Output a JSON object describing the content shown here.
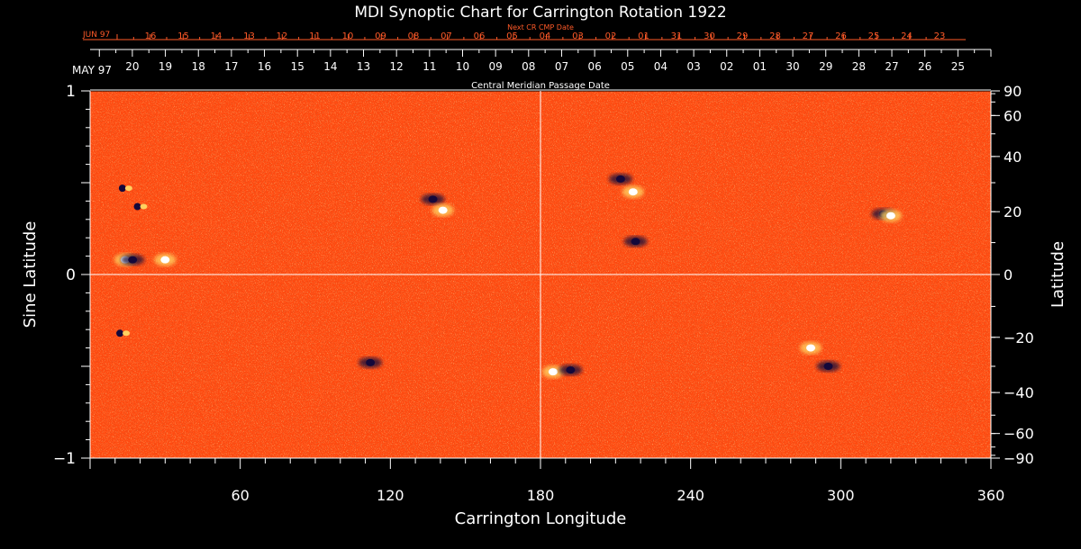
{
  "chart_data": {
    "type": "heatmap",
    "title": "MDI Synoptic Chart for Carrington Rotation 1922",
    "xlabel": "Carrington Longitude",
    "ylabel_left": "Sine Latitude",
    "ylabel_right": "Latitude",
    "xlim": [
      0,
      360
    ],
    "ylim": [
      -1,
      1
    ],
    "x_ticks": [
      60,
      120,
      180,
      240,
      300,
      360
    ],
    "y_left_ticks": [
      {
        "v": 1,
        "label": "1"
      },
      {
        "v": 0,
        "label": "0"
      },
      {
        "v": -1,
        "label": "−1"
      }
    ],
    "y_right_ticks": [
      90,
      60,
      40,
      20,
      0,
      -20,
      -40,
      -60,
      -90
    ],
    "y_right_tick_labels": [
      "90",
      "60",
      "40",
      "20",
      "0",
      "−20",
      "−40",
      "−60",
      "−90"
    ],
    "center_lines": {
      "longitude": 180,
      "sine_latitude": 0
    },
    "top_axis": {
      "label": "Central Meridian Passage Date",
      "month_label": "MAY 97",
      "dates": [
        "20",
        "19",
        "18",
        "17",
        "16",
        "15",
        "14",
        "13",
        "12",
        "11",
        "10",
        "09",
        "08",
        "07",
        "06",
        "05",
        "04",
        "03",
        "02",
        "01",
        "30",
        "29",
        "28",
        "27",
        "26",
        "25"
      ]
    },
    "next_axis": {
      "label": "Next CR CMP Date",
      "month_label": "JUN 97",
      "dates": [
        "16",
        "15",
        "14",
        "13",
        "12",
        "11",
        "10",
        "09",
        "08",
        "07",
        "06",
        "05",
        "04",
        "03",
        "02",
        "01",
        "31",
        "30",
        "29",
        "28",
        "27",
        "26",
        "25",
        "24",
        "23"
      ]
    },
    "magnetic_regions": [
      {
        "lon": 14,
        "sinlat": 0.47,
        "polarity": "mixed"
      },
      {
        "lon": 20,
        "sinlat": 0.37,
        "polarity": "mixed"
      },
      {
        "lon": 14,
        "sinlat": 0.08,
        "polarity": "positive"
      },
      {
        "lon": 17,
        "sinlat": 0.08,
        "polarity": "negative"
      },
      {
        "lon": 30,
        "sinlat": 0.08,
        "polarity": "positive"
      },
      {
        "lon": 137,
        "sinlat": 0.41,
        "polarity": "negative"
      },
      {
        "lon": 141,
        "sinlat": 0.35,
        "polarity": "positive"
      },
      {
        "lon": 212,
        "sinlat": 0.52,
        "polarity": "negative"
      },
      {
        "lon": 217,
        "sinlat": 0.45,
        "polarity": "positive"
      },
      {
        "lon": 218,
        "sinlat": 0.18,
        "polarity": "negative"
      },
      {
        "lon": 317,
        "sinlat": 0.33,
        "polarity": "negative"
      },
      {
        "lon": 320,
        "sinlat": 0.32,
        "polarity": "positive"
      },
      {
        "lon": 13,
        "sinlat": -0.32,
        "polarity": "mixed"
      },
      {
        "lon": 112,
        "sinlat": -0.48,
        "polarity": "negative"
      },
      {
        "lon": 185,
        "sinlat": -0.53,
        "polarity": "positive"
      },
      {
        "lon": 192,
        "sinlat": -0.52,
        "polarity": "negative"
      },
      {
        "lon": 288,
        "sinlat": -0.4,
        "polarity": "positive"
      },
      {
        "lon": 295,
        "sinlat": -0.5,
        "polarity": "negative"
      }
    ],
    "colors": {
      "background_field": "#ff4a10",
      "positive": "#ffffff",
      "positive_halo": "#ffd060",
      "negative": "#14083a",
      "axis_text": "#ffffff",
      "next_axis_text": "#ff5a28",
      "frame": "#000000"
    },
    "grid": false
  }
}
